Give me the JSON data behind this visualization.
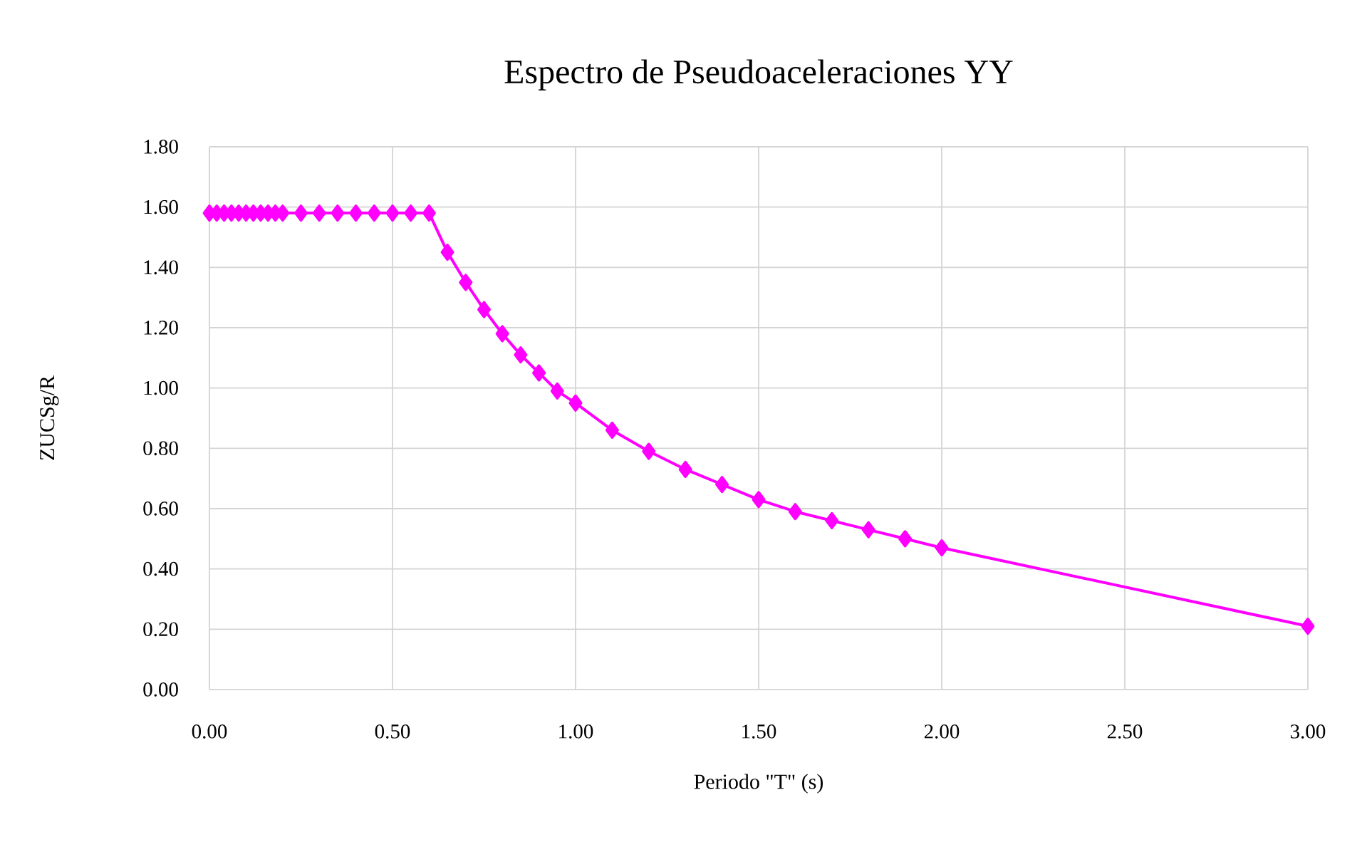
{
  "chart_data": {
    "type": "line",
    "title": "Espectro de Pseudoaceleraciones YY",
    "xlabel": "Periodo \"T\" (s)",
    "ylabel": "ZUCSg/R",
    "x": [
      0,
      0.02,
      0.04,
      0.06,
      0.08,
      0.1,
      0.12,
      0.14,
      0.16,
      0.18,
      0.2,
      0.25,
      0.3,
      0.35,
      0.4,
      0.45,
      0.5,
      0.55,
      0.6,
      0.65,
      0.7,
      0.75,
      0.8,
      0.85,
      0.9,
      0.95,
      1.0,
      1.1,
      1.2,
      1.3,
      1.4,
      1.5,
      1.6,
      1.7,
      1.8,
      1.9,
      2.0,
      3.0
    ],
    "series": [
      {
        "color": "#ff00ff",
        "values": [
          1.58,
          1.58,
          1.58,
          1.58,
          1.58,
          1.58,
          1.58,
          1.58,
          1.58,
          1.58,
          1.58,
          1.58,
          1.58,
          1.58,
          1.58,
          1.58,
          1.58,
          1.58,
          1.58,
          1.45,
          1.35,
          1.26,
          1.18,
          1.11,
          1.05,
          0.99,
          0.95,
          0.86,
          0.79,
          0.73,
          0.68,
          0.63,
          0.59,
          0.56,
          0.53,
          0.5,
          0.47,
          0.21
        ]
      }
    ],
    "xlim": [
      0,
      3
    ],
    "ylim": [
      0,
      1.8
    ],
    "xticks": [
      {
        "value": 0,
        "label": "0.00"
      },
      {
        "value": 0.5,
        "label": "0.50"
      },
      {
        "value": 1,
        "label": "1.00"
      },
      {
        "value": 1.5,
        "label": "1.50"
      },
      {
        "value": 2,
        "label": "2.00"
      },
      {
        "value": 2.5,
        "label": "2.50"
      },
      {
        "value": 3,
        "label": "3.00"
      }
    ],
    "yticks": [
      {
        "value": 0,
        "label": "0.00"
      },
      {
        "value": 0.2,
        "label": "0.20"
      },
      {
        "value": 0.4,
        "label": "0.40"
      },
      {
        "value": 0.6,
        "label": "0.60"
      },
      {
        "value": 0.8,
        "label": "0.80"
      },
      {
        "value": 1.0,
        "label": "1.00"
      },
      {
        "value": 1.2,
        "label": "1.20"
      },
      {
        "value": 1.4,
        "label": "1.40"
      },
      {
        "value": 1.6,
        "label": "1.60"
      },
      {
        "value": 1.8,
        "label": "1.80"
      }
    ],
    "grid": true,
    "marker": "diamond",
    "line_style": "solid"
  }
}
